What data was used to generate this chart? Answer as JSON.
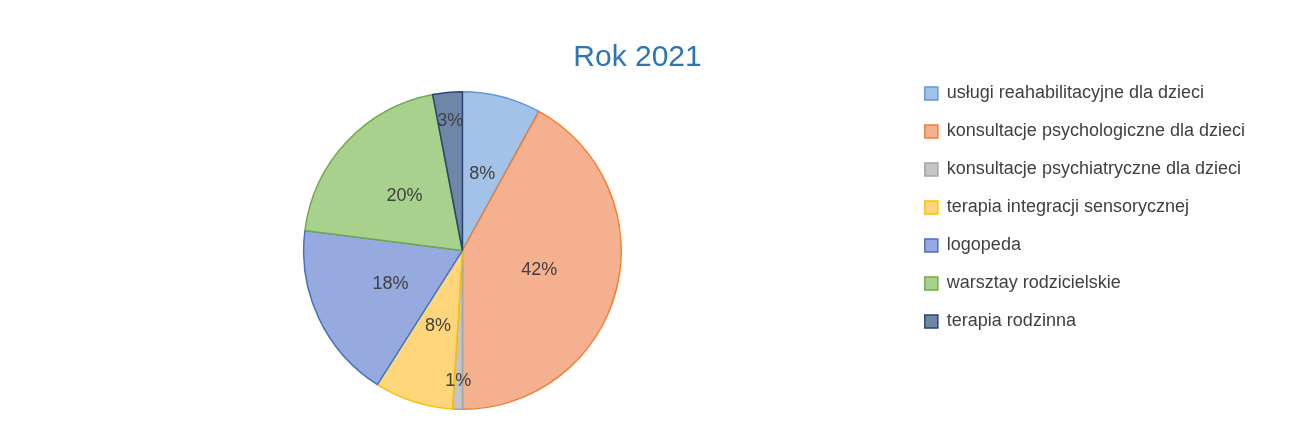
{
  "chart_data": {
    "type": "pie",
    "title": "Rok 2021",
    "categories": [
      "usługi reahabilitacyjne dla dzieci",
      "konsultacje psychologiczne dla dzieci",
      "konsultacje psychiatryczne dla dzieci",
      "terapia integracji sensorycznej",
      "logopeda",
      "warsztay rodzicielskie",
      "terapia rodzinna"
    ],
    "values": [
      8,
      42,
      1,
      8,
      18,
      20,
      3
    ],
    "colors": [
      "#a4c2e8",
      "#f5b08f",
      "#c5c5c5",
      "#ffd67a",
      "#97aadf",
      "#a9d18e",
      "#6f86a8"
    ],
    "value_labels": [
      "8%",
      "42%",
      "1%",
      "8%",
      "18%",
      "20%",
      "3%"
    ],
    "legend": "right"
  }
}
